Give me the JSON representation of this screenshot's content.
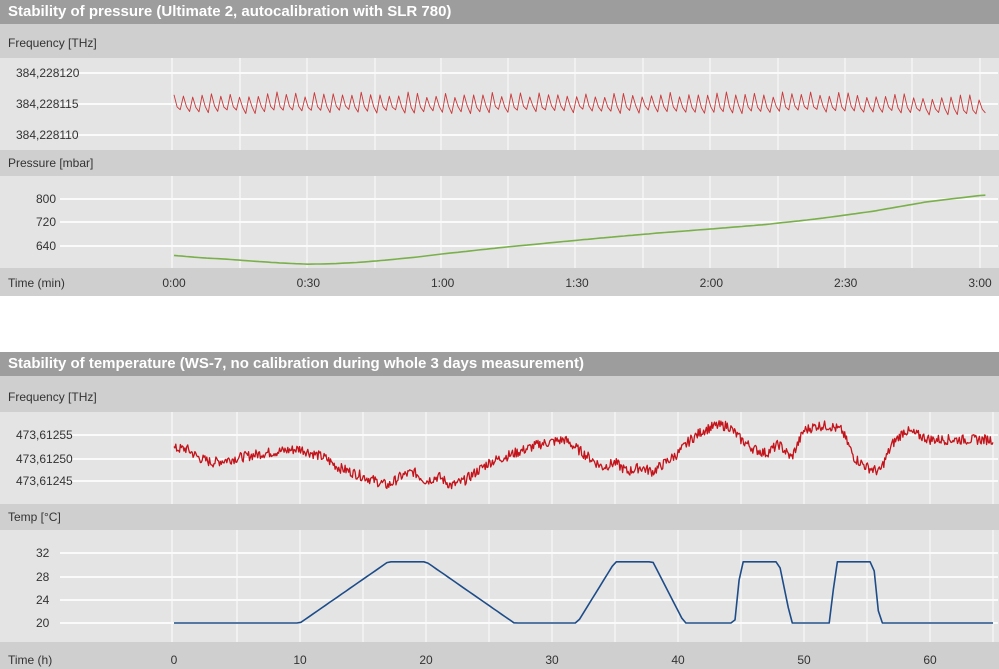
{
  "chart_data": [
    {
      "title": "Stability of pressure (Ultimate 2, autocalibration with  SLR 780)",
      "x_label": "Time (min)",
      "x_ticks": [
        "0:00",
        "0:30",
        "1:00",
        "1:30",
        "2:00",
        "2:30",
        "3:00"
      ],
      "x_range": [
        0,
        3
      ],
      "subplots": [
        {
          "type": "line",
          "ylabel": "Frequency [THz]",
          "y_ticks": [
            "384,228120",
            "384,228115",
            "384,228110"
          ],
          "y_tick_values": [
            384.22812,
            384.228115,
            384.22811
          ],
          "ylim": [
            384.228109,
            384.228121
          ],
          "color": "#c9383a",
          "pattern": "sawtooth",
          "x": [
            0.0,
            0.5,
            1.0,
            1.5,
            2.0,
            2.5,
            3.02
          ],
          "y": [
            384.228115,
            384.228115,
            384.228115,
            384.228115,
            384.228115,
            384.228115,
            384.2281145
          ],
          "amplitude": 1.5e-06
        },
        {
          "type": "line",
          "ylabel": "Pressure [mbar]",
          "y_ticks": [
            "800",
            "720",
            "640"
          ],
          "y_tick_values": [
            800,
            720,
            640
          ],
          "ylim": [
            570,
            840
          ],
          "color": "#7ab04a",
          "x": [
            0.0,
            0.1,
            0.2,
            0.3,
            0.4,
            0.5,
            0.6,
            0.7,
            0.8,
            0.9,
            1.0,
            1.2,
            1.4,
            1.6,
            1.8,
            2.0,
            2.2,
            2.4,
            2.6,
            2.8,
            3.0,
            3.02
          ],
          "y": [
            608,
            600,
            595,
            588,
            582,
            578,
            580,
            585,
            593,
            602,
            613,
            633,
            651,
            668,
            684,
            698,
            713,
            733,
            758,
            790,
            812,
            813
          ]
        }
      ]
    },
    {
      "title": "Stability of temperature (WS-7, no calibration during whole 3 days measurement)",
      "x_label": "Time (h)",
      "x_ticks": [
        "0",
        "10",
        "20",
        "30",
        "40",
        "50",
        "60"
      ],
      "x_range": [
        0,
        65
      ],
      "subplots": [
        {
          "type": "line",
          "ylabel": "Frequency [THz]",
          "y_ticks": [
            "473,61255",
            "473,61250",
            "473,61245"
          ],
          "y_tick_values": [
            473.61255,
            473.6125,
            473.61245
          ],
          "ylim": [
            473.61241,
            473.61259
          ],
          "color": "#c4141b",
          "pattern": "noisy",
          "x": [
            0,
            1,
            2,
            3,
            5,
            7,
            10,
            12,
            13,
            14,
            15,
            16,
            17,
            18,
            19,
            20,
            21,
            22,
            23,
            24,
            25,
            27,
            29,
            31,
            32,
            33,
            34,
            35,
            36,
            37,
            38,
            39,
            40,
            41,
            42,
            43,
            44,
            45,
            46,
            47,
            48,
            49,
            50,
            51,
            52,
            53,
            54,
            55,
            56,
            57,
            58,
            59,
            60,
            62,
            64,
            65
          ],
          "y": [
            473.61252,
            473.61252,
            473.6125,
            473.61249,
            473.6125,
            473.61251,
            473.61252,
            473.6125,
            473.61248,
            473.61247,
            473.61246,
            473.61245,
            473.61244,
            473.61246,
            473.61247,
            473.61245,
            473.61246,
            473.61244,
            473.61245,
            473.61247,
            473.61249,
            473.61251,
            473.61253,
            473.61254,
            473.61252,
            473.6125,
            473.61248,
            473.61249,
            473.61247,
            473.61248,
            473.61247,
            473.61249,
            473.61251,
            473.61254,
            473.61256,
            473.61257,
            473.61257,
            473.61254,
            473.61252,
            473.61251,
            473.61253,
            473.6125,
            473.61256,
            473.61257,
            473.61257,
            473.61256,
            473.6125,
            473.61248,
            473.61247,
            473.61253,
            473.61256,
            473.61255,
            473.61254,
            473.61254,
            473.61254,
            473.61254
          ]
        },
        {
          "type": "line",
          "ylabel": "Temp [°C]",
          "y_ticks": [
            "32",
            "28",
            "24",
            "20"
          ],
          "y_tick_values": [
            32,
            28,
            24,
            20
          ],
          "ylim": [
            18.5,
            34.6
          ],
          "color": "#1d4c88",
          "x": [
            0,
            10,
            17,
            20,
            27,
            32,
            35,
            38,
            40.5,
            42,
            44.5,
            45,
            48,
            49,
            52,
            52.6,
            55.5,
            56,
            65
          ],
          "y": [
            20,
            20,
            30.5,
            30.5,
            20,
            20,
            30.5,
            30.5,
            20,
            20,
            20,
            30.5,
            30.5,
            20,
            20,
            30.5,
            30.5,
            20,
            20
          ]
        }
      ]
    }
  ]
}
